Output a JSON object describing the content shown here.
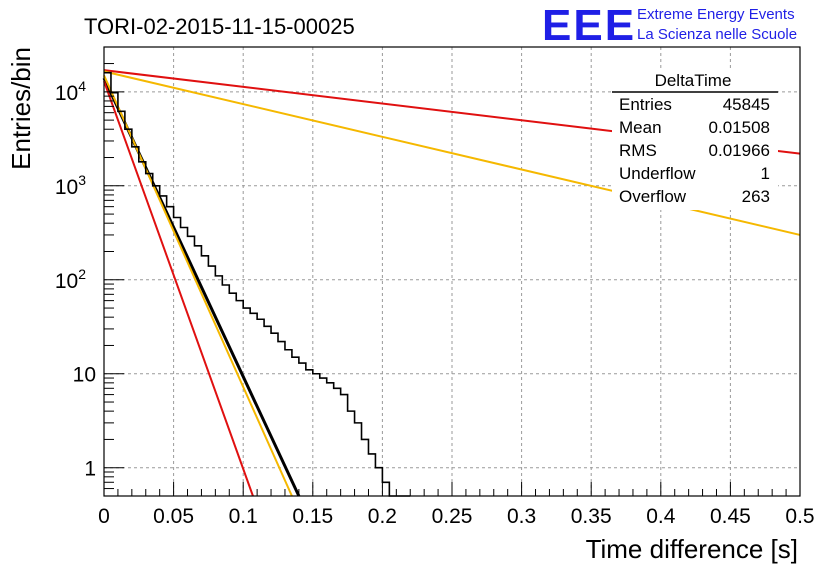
{
  "chart_data": {
    "type": "histogram-log",
    "title": "TORI-02-2015-11-15-00025",
    "xlabel": "Time difference [s]",
    "ylabel": "Entries/bin",
    "xlim": [
      0,
      0.5
    ],
    "ylim": [
      0.5,
      30000
    ],
    "log_y": true,
    "grid": true,
    "x_ticks": [
      "0",
      "0.05",
      "0.1",
      "0.15",
      "0.2",
      "0.25",
      "0.3",
      "0.35",
      "0.4",
      "0.45",
      "0.5"
    ],
    "y_ticks": [
      {
        "value": 1,
        "base": "1",
        "exp": ""
      },
      {
        "value": 10,
        "base": "10",
        "exp": ""
      },
      {
        "value": 100,
        "base": "10",
        "exp": "2"
      },
      {
        "value": 1000,
        "base": "10",
        "exp": "3"
      },
      {
        "value": 10000,
        "base": "10",
        "exp": "4"
      }
    ],
    "histogram": {
      "bin_width": 0.005,
      "counts": [
        16000,
        9800,
        6200,
        4000,
        2600,
        1800,
        1350,
        1000,
        780,
        600,
        460,
        360,
        290,
        230,
        180,
        140,
        110,
        88,
        72,
        60,
        50,
        44,
        38,
        32,
        27,
        22,
        18,
        15,
        13,
        11,
        10,
        9,
        8,
        7,
        6,
        4,
        3,
        2,
        1.4,
        1,
        0.7,
        0.5,
        0.4,
        0.3
      ]
    },
    "fits": [
      {
        "color": "#e01010",
        "x": [
          0,
          0.5
        ],
        "y": [
          17000,
          2200
        ]
      },
      {
        "color": "#f5b800",
        "x": [
          0,
          0.5
        ],
        "y": [
          16500,
          300
        ]
      },
      {
        "color": "#000000",
        "x": [
          0,
          0.14
        ],
        "y": [
          14000,
          0.5
        ]
      },
      {
        "color": "#f5b800",
        "x": [
          0,
          0.135
        ],
        "y": [
          15000,
          0.5
        ]
      },
      {
        "color": "#e01010",
        "x": [
          0,
          0.107
        ],
        "y": [
          13000,
          0.5
        ]
      }
    ]
  },
  "stats": {
    "title": "DeltaTime",
    "rows": [
      {
        "label": "Entries",
        "value": "45845"
      },
      {
        "label": "Mean",
        "value": "0.01508"
      },
      {
        "label": "RMS",
        "value": "0.01966"
      },
      {
        "label": "Underflow",
        "value": "1"
      },
      {
        "label": "Overflow",
        "value": "263"
      }
    ]
  },
  "logo": {
    "mark": "EEE",
    "line1": "Extreme Energy Events",
    "line2": "La Scienza nelle Scuole"
  }
}
